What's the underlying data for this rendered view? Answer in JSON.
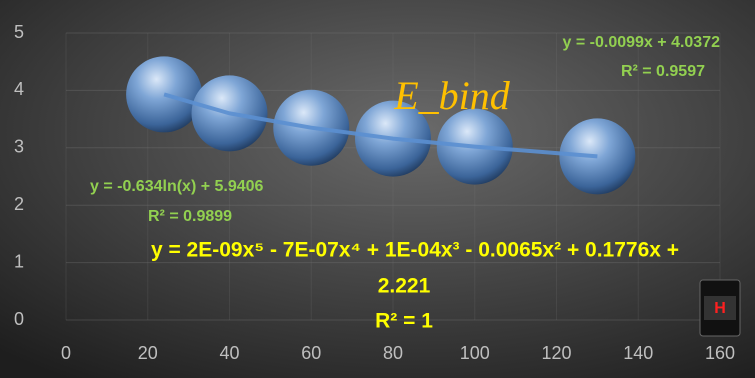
{
  "chart_data": {
    "type": "scatter",
    "title": "E_bind",
    "x": [
      24,
      40,
      60,
      80,
      100,
      130
    ],
    "values": [
      3.93,
      3.6,
      3.35,
      3.16,
      3.02,
      2.85
    ],
    "color": "#4f81bd",
    "xlim": [
      0,
      160
    ],
    "xticks": [
      0,
      20,
      40,
      60,
      80,
      100,
      120,
      140,
      160
    ],
    "ylim": [
      0,
      5
    ],
    "yticks": [
      0,
      1,
      2,
      3,
      4,
      5
    ],
    "grid": true,
    "annotations": [
      "y = -0.0099x + 4.0372",
      "R² = 0.9597",
      "y = -0.634ln(x) + 5.9406",
      "R² = 0.9899",
      "y = 2E-09x⁵ - 7E-07x⁴ + 1E-04x³ - 0.0065x² + 0.1776x +",
      "2.221",
      "R² = 1"
    ],
    "icon_label": "H"
  }
}
